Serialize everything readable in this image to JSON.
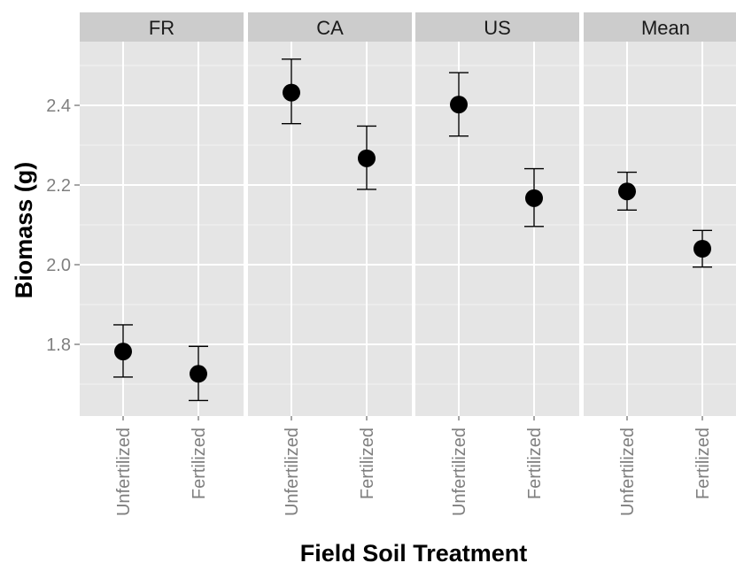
{
  "chart_data": {
    "type": "scatter",
    "facets": [
      "FR",
      "CA",
      "US",
      "Mean"
    ],
    "categories": [
      "Unfertilized",
      "Fertilized"
    ],
    "series": [
      {
        "facet": "FR",
        "values": [
          1.782,
          1.726
        ],
        "error_low": [
          1.718,
          1.659
        ],
        "error_high": [
          1.849,
          1.795
        ]
      },
      {
        "facet": "CA",
        "values": [
          2.432,
          2.267
        ],
        "error_low": [
          2.354,
          2.189
        ],
        "error_high": [
          2.516,
          2.348
        ]
      },
      {
        "facet": "US",
        "values": [
          2.402,
          2.167
        ],
        "error_low": [
          2.323,
          2.096
        ],
        "error_high": [
          2.482,
          2.241
        ]
      },
      {
        "facet": "Mean",
        "values": [
          2.184,
          2.04
        ],
        "error_low": [
          2.137,
          1.994
        ],
        "error_high": [
          2.232,
          2.086
        ]
      }
    ],
    "xlabel": "Field Soil Treatment",
    "ylabel": "Biomass (g)",
    "yticks": [
      1.8,
      2.0,
      2.2,
      2.4
    ],
    "ytick_labels": [
      "1.8",
      "2.0",
      "2.2",
      "2.4"
    ],
    "ylim": [
      1.62,
      2.56
    ],
    "grid": true,
    "colors": {
      "panel_background": "#e5e5e5",
      "strip_background": "#cccccc",
      "grid_major": "#ffffff",
      "grid_minor": "#f2f2f2",
      "point": "#000000"
    }
  }
}
